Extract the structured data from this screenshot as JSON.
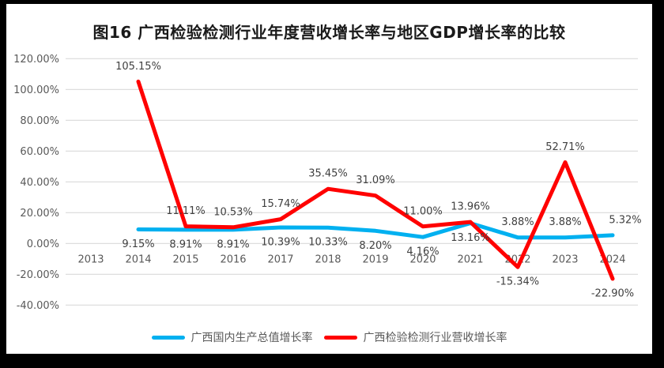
{
  "frame": {
    "border_color": "#000000",
    "panel_background": "#ffffff"
  },
  "chart_data": {
    "type": "line",
    "title": "图16 广西检验检测行业年度营收增长率与地区GDP增长率的比较",
    "categories": [
      "2013",
      "2014",
      "2015",
      "2016",
      "2017",
      "2018",
      "2019",
      "2020",
      "2021",
      "2022",
      "2023",
      "2024"
    ],
    "series": [
      {
        "name": "广西国内生产总值增长率",
        "color": "#00B0F0",
        "values": [
          null,
          9.15,
          8.91,
          8.91,
          10.39,
          10.33,
          8.2,
          4.16,
          13.16,
          3.88,
          3.88,
          5.32
        ],
        "labels": [
          null,
          "9.15%",
          "8.91%",
          "8.91%",
          "10.39%",
          "10.33%",
          "8.20%",
          "4.16%",
          "13.16%",
          "3.88%",
          "3.88%",
          "5.32%"
        ],
        "label_side": [
          null,
          "below",
          "below",
          "below",
          "below",
          "below",
          "below",
          "below",
          "below",
          "above",
          "above",
          "above"
        ],
        "label_dx": {
          "11": 16
        }
      },
      {
        "name": "广西检验检测行业营收增长率",
        "color": "#FF0000",
        "values": [
          null,
          105.15,
          11.11,
          10.53,
          15.74,
          35.45,
          31.09,
          11.0,
          13.96,
          -15.34,
          52.71,
          -22.9
        ],
        "labels": [
          null,
          "105.15%",
          "11.11%",
          "10.53%",
          "15.74%",
          "35.45%",
          "31.09%",
          "11.00%",
          "13.96%",
          "-15.34%",
          "52.71%",
          "-22.90%"
        ],
        "label_side": [
          null,
          "above",
          "above",
          "above",
          "above",
          "above",
          "above",
          "above",
          "above",
          "below",
          "above",
          "below"
        ],
        "label_dx": {}
      }
    ],
    "y_axis": {
      "min": -40,
      "max": 120,
      "step": 20,
      "tick_labels": [
        "120.00%",
        "100.00%",
        "80.00%",
        "60.00%",
        "40.00%",
        "20.00%",
        "0.00%",
        "-20.00%",
        "-40.00%"
      ]
    },
    "grid": true,
    "grid_color": "#D9D9D9",
    "axis_text_color": "#595959",
    "data_label_color": "#404040",
    "legend_position": "bottom"
  }
}
